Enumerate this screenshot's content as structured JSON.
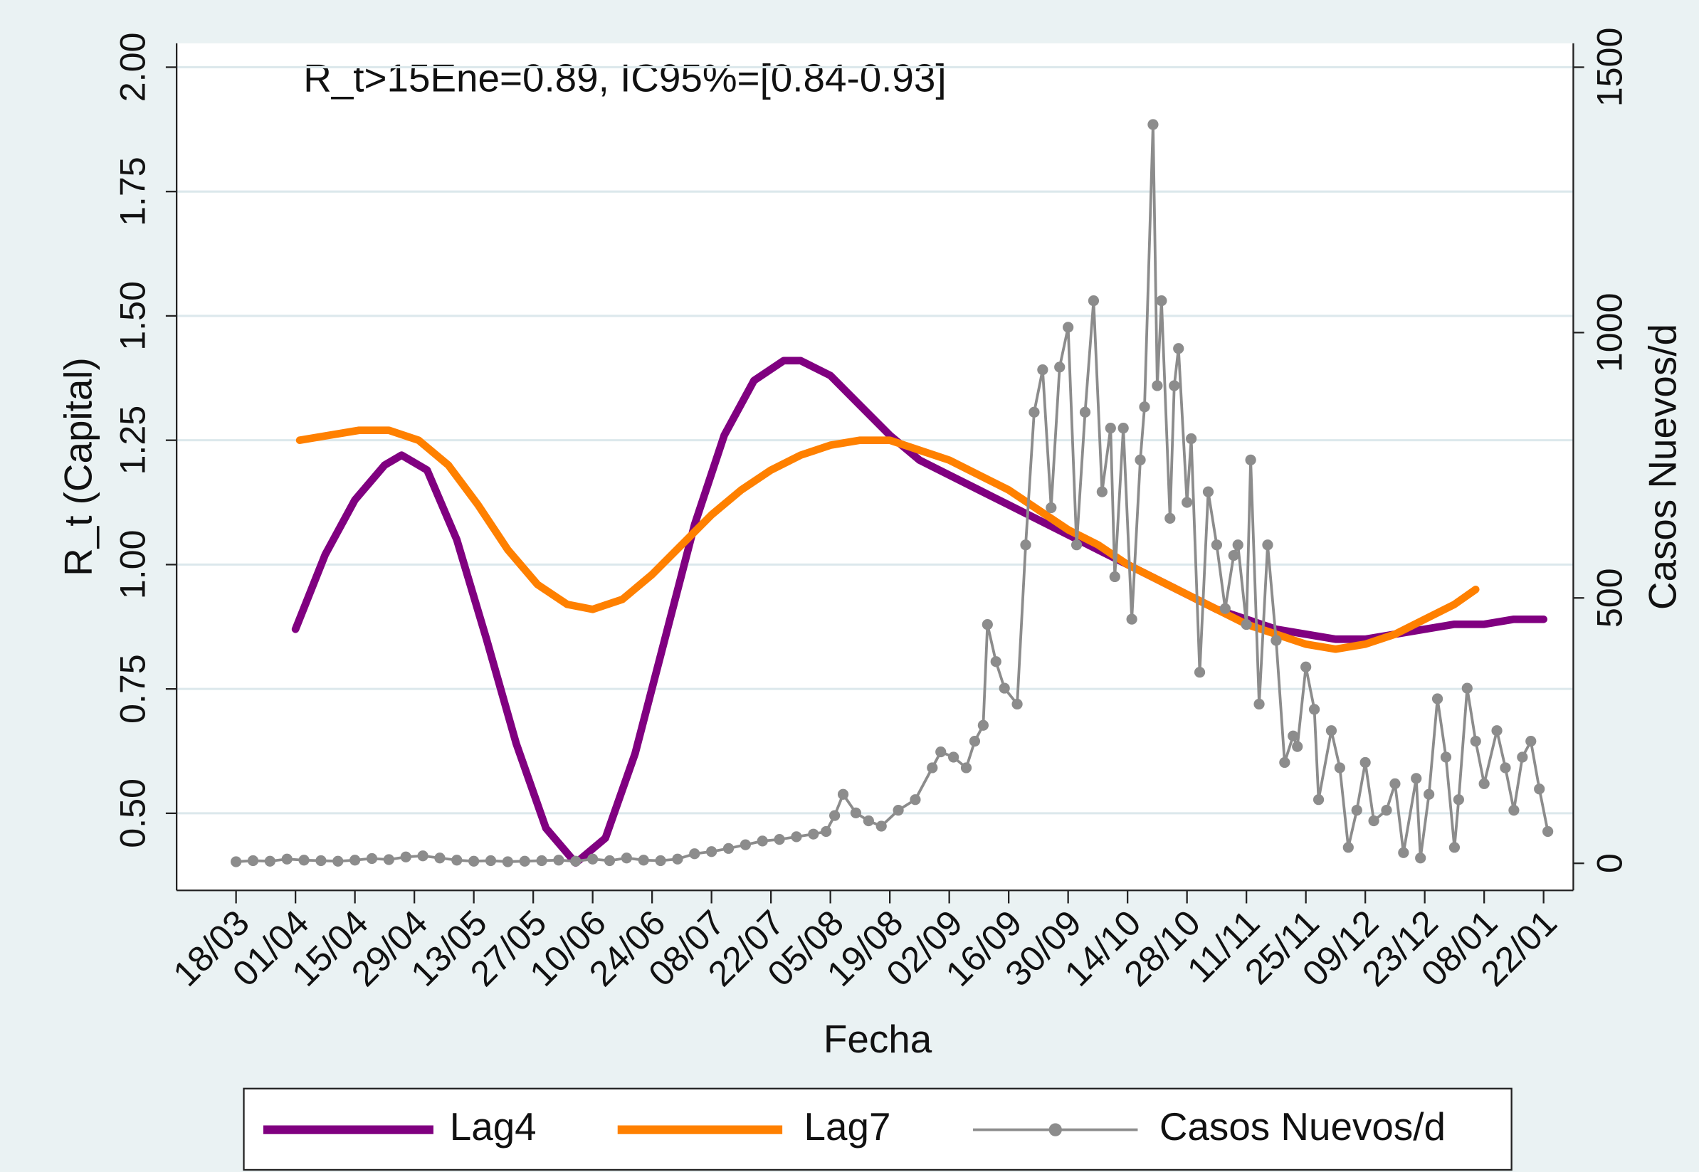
{
  "chart_data": {
    "type": "line",
    "annotation": "R_t>15Ene=0.89, IC95%=[0.84-0.93]",
    "x_label": "Fecha",
    "y_label": "R_t (Capital)",
    "y2_label": "Casos Nuevos/d",
    "xlim": [
      -14,
      315
    ],
    "xticks": [
      {
        "value": 0,
        "label": "18/03"
      },
      {
        "value": 14,
        "label": "01/04"
      },
      {
        "value": 28,
        "label": "15/04"
      },
      {
        "value": 42,
        "label": "29/04"
      },
      {
        "value": 56,
        "label": "13/05"
      },
      {
        "value": 70,
        "label": "27/05"
      },
      {
        "value": 84,
        "label": "10/06"
      },
      {
        "value": 98,
        "label": "24/06"
      },
      {
        "value": 112,
        "label": "08/07"
      },
      {
        "value": 126,
        "label": "22/07"
      },
      {
        "value": 140,
        "label": "05/08"
      },
      {
        "value": 154,
        "label": "19/08"
      },
      {
        "value": 168,
        "label": "02/09"
      },
      {
        "value": 182,
        "label": "16/09"
      },
      {
        "value": 196,
        "label": "30/09"
      },
      {
        "value": 210,
        "label": "14/10"
      },
      {
        "value": 224,
        "label": "28/10"
      },
      {
        "value": 238,
        "label": "11/11"
      },
      {
        "value": 252,
        "label": "25/11"
      },
      {
        "value": 266,
        "label": "09/12"
      },
      {
        "value": 280,
        "label": "23/12"
      },
      {
        "value": 294,
        "label": "08/01"
      },
      {
        "value": 308,
        "label": "22/01"
      }
    ],
    "ylim": [
      0.345,
      2.048
    ],
    "yticks": [
      {
        "value": 0.5,
        "label": "0.50"
      },
      0.75,
      {
        "value": 1,
        "label": "1.00"
      },
      1.25,
      {
        "value": 1.5,
        "label": "1.50"
      },
      1.75,
      {
        "value": 2,
        "label": "2.00"
      }
    ],
    "y2lim": [
      -51,
      1545
    ],
    "y2ticks": [
      0,
      500,
      1000,
      1500
    ],
    "grid": true,
    "legend": "bottom",
    "series": [
      {
        "name": "Lag4",
        "color": "#800080",
        "x": [
          14,
          21,
          28,
          35,
          39,
          45,
          52,
          59,
          66,
          73,
          80,
          87,
          94,
          101,
          108,
          115,
          122,
          129,
          133,
          140,
          147,
          154,
          161,
          168,
          175,
          182,
          189,
          196,
          203,
          210,
          217,
          224,
          231,
          238,
          245,
          252,
          259,
          266,
          273,
          280,
          287,
          294,
          301,
          308
        ],
        "values": [
          0.87,
          1.02,
          1.13,
          1.2,
          1.22,
          1.19,
          1.05,
          0.85,
          0.64,
          0.47,
          0.4,
          0.45,
          0.62,
          0.85,
          1.08,
          1.26,
          1.37,
          1.41,
          1.41,
          1.38,
          1.32,
          1.26,
          1.21,
          1.18,
          1.15,
          1.12,
          1.09,
          1.06,
          1.03,
          1.0,
          0.97,
          0.94,
          0.91,
          0.89,
          0.87,
          0.86,
          0.85,
          0.85,
          0.86,
          0.87,
          0.88,
          0.88,
          0.89,
          0.89
        ]
      },
      {
        "name": "Lag7",
        "color": "#ff8000",
        "x": [
          15,
          22,
          29,
          36,
          43,
          50,
          57,
          64,
          71,
          78,
          84,
          91,
          98,
          105,
          112,
          119,
          126,
          133,
          140,
          147,
          154,
          161,
          168,
          175,
          182,
          189,
          196,
          203,
          210,
          217,
          224,
          231,
          238,
          245,
          252,
          259,
          266,
          273,
          280,
          287,
          292
        ],
        "values": [
          1.25,
          1.26,
          1.27,
          1.27,
          1.25,
          1.2,
          1.12,
          1.03,
          0.96,
          0.92,
          0.91,
          0.93,
          0.98,
          1.04,
          1.1,
          1.15,
          1.19,
          1.22,
          1.24,
          1.25,
          1.25,
          1.23,
          1.21,
          1.18,
          1.15,
          1.11,
          1.07,
          1.04,
          1.0,
          0.97,
          0.94,
          0.91,
          0.88,
          0.86,
          0.84,
          0.83,
          0.84,
          0.86,
          0.89,
          0.92,
          0.95
        ]
      },
      {
        "name": "Casos Nuevos/d",
        "color": "#8c8c8c",
        "axis": "y2",
        "markers": true,
        "x": [
          0,
          4,
          8,
          12,
          16,
          20,
          24,
          28,
          32,
          36,
          40,
          44,
          48,
          52,
          56,
          60,
          64,
          68,
          72,
          76,
          80,
          84,
          88,
          92,
          96,
          100,
          104,
          108,
          112,
          116,
          120,
          124,
          128,
          132,
          136,
          139,
          141,
          143,
          146,
          149,
          152,
          156,
          160,
          164,
          166,
          169,
          172,
          174,
          176,
          177,
          179,
          181,
          184,
          186,
          188,
          190,
          192,
          194,
          196,
          198,
          200,
          202,
          204,
          206,
          207,
          209,
          211,
          213,
          214,
          216,
          217,
          218,
          220,
          221,
          222,
          224,
          225,
          227,
          229,
          231,
          233,
          235,
          236,
          238,
          239,
          241,
          243,
          245,
          247,
          249,
          250,
          252,
          254,
          255,
          258,
          260,
          262,
          264,
          266,
          268,
          271,
          273,
          275,
          278,
          279,
          281,
          283,
          285,
          287,
          288,
          290,
          292,
          294,
          297,
          299,
          301,
          303,
          305,
          307,
          309
        ],
        "values": [
          3,
          5,
          4,
          8,
          6,
          5,
          4,
          6,
          9,
          7,
          12,
          14,
          10,
          6,
          4,
          5,
          3,
          4,
          5,
          6,
          4,
          8,
          5,
          10,
          6,
          5,
          8,
          18,
          22,
          28,
          35,
          42,
          45,
          50,
          55,
          60,
          90,
          130,
          95,
          80,
          70,
          100,
          120,
          180,
          210,
          200,
          180,
          230,
          260,
          450,
          380,
          330,
          300,
          600,
          850,
          930,
          670,
          935,
          1010,
          600,
          850,
          1060,
          700,
          820,
          540,
          820,
          460,
          760,
          860,
          1392,
          900,
          1060,
          650,
          900,
          970,
          680,
          800,
          360,
          700,
          600,
          480,
          580,
          600,
          450,
          760,
          300,
          600,
          420,
          190,
          240,
          220,
          370,
          290,
          120,
          250,
          180,
          30,
          100,
          190,
          80,
          100,
          150,
          20,
          160,
          10,
          130,
          310,
          200,
          30,
          120,
          330,
          230,
          150,
          250,
          180,
          100,
          200,
          230,
          140,
          60
        ]
      }
    ]
  }
}
